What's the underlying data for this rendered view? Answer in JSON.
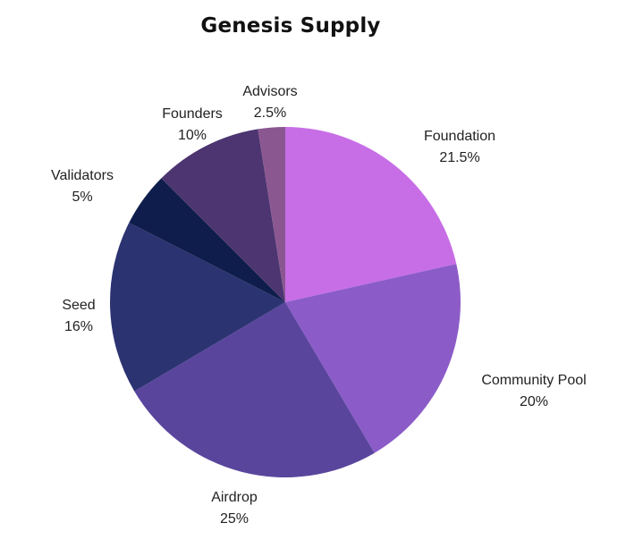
{
  "chart_data": {
    "type": "pie",
    "title": "Genesis Supply",
    "slices": [
      {
        "label": "Foundation",
        "pct_text": "21.5%",
        "value": 21.5,
        "color": "#c76ee6"
      },
      {
        "label": "Community Pool",
        "pct_text": "20%",
        "value": 20,
        "color": "#8b5cc8"
      },
      {
        "label": "Airdrop",
        "pct_text": "25%",
        "value": 25,
        "color": "#5a459d"
      },
      {
        "label": "Seed",
        "pct_text": "16%",
        "value": 16,
        "color": "#2c3371"
      },
      {
        "label": "Validators",
        "pct_text": "5%",
        "value": 5,
        "color": "#0e1d4b"
      },
      {
        "label": "Founders",
        "pct_text": "10%",
        "value": 10,
        "color": "#4c3570"
      },
      {
        "label": "Advisors",
        "pct_text": "2.5%",
        "value": 2.5,
        "color": "#8a5791"
      }
    ],
    "start": "12 o'clock",
    "direction": "clockwise",
    "legend": "none",
    "labels": "outside"
  }
}
